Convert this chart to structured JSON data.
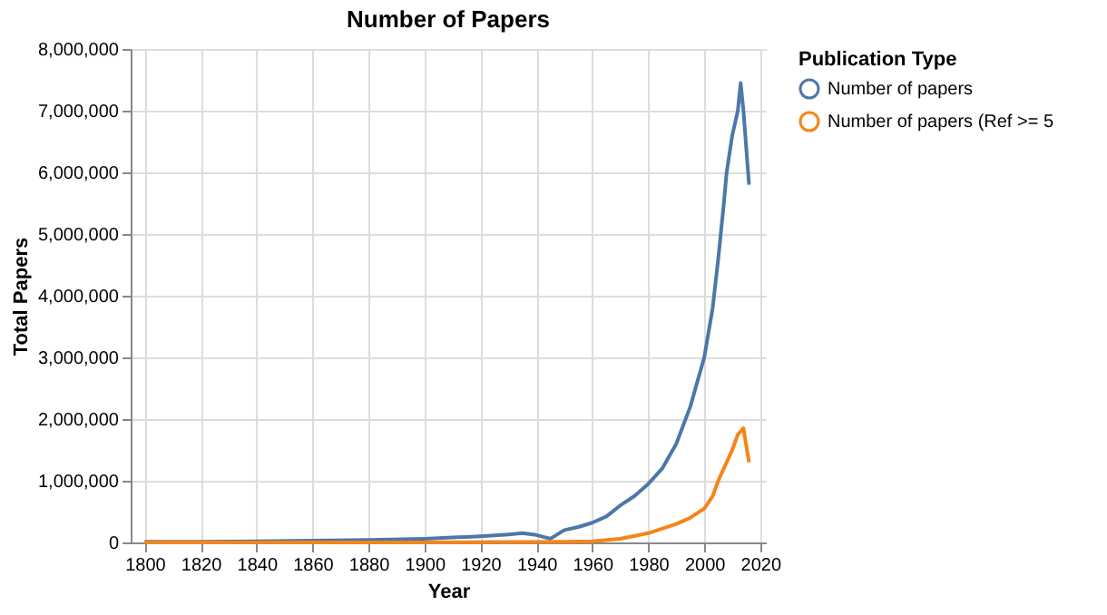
{
  "chart_data": {
    "type": "line",
    "title": "Number of Papers",
    "xlabel": "Year",
    "ylabel": "Total Papers",
    "legend_title": "Publication Type",
    "xlim": [
      1795,
      2022
    ],
    "xticks": [
      1800,
      1820,
      1840,
      1860,
      1880,
      1900,
      1920,
      1940,
      1960,
      1980,
      2000,
      2020
    ],
    "ylim": [
      0,
      8000000
    ],
    "yticks": [
      {
        "value": 0,
        "label": "0"
      },
      {
        "value": 1000000,
        "label": "1,000,000"
      },
      {
        "value": 2000000,
        "label": "2,000,000"
      },
      {
        "value": 3000000,
        "label": "3,000,000"
      },
      {
        "value": 4000000,
        "label": "4,000,000"
      },
      {
        "value": 5000000,
        "label": "5,000,000"
      },
      {
        "value": 6000000,
        "label": "6,000,000"
      },
      {
        "value": 7000000,
        "label": "7,000,000"
      },
      {
        "value": 8000000,
        "label": "8,000,000"
      }
    ],
    "grid": true,
    "legend": "top right",
    "marker": "none",
    "series": [
      {
        "name": "Number of papers",
        "color": "#4c78a8",
        "x": [
          1800,
          1820,
          1840,
          1860,
          1880,
          1900,
          1910,
          1920,
          1930,
          1935,
          1940,
          1945,
          1950,
          1955,
          1960,
          1965,
          1970,
          1975,
          1980,
          1985,
          1990,
          1995,
          2000,
          2003,
          2005,
          2007,
          2008,
          2010,
          2012,
          2013,
          2014,
          2016
        ],
        "values": [
          10000,
          10000,
          20000,
          30000,
          40000,
          60000,
          80000,
          100000,
          130000,
          150000,
          120000,
          60000,
          200000,
          250000,
          320000,
          420000,
          600000,
          750000,
          950000,
          1200000,
          1600000,
          2200000,
          3000000,
          3800000,
          4600000,
          5500000,
          6000000,
          6600000,
          7000000,
          7450000,
          7000000,
          5800000
        ]
      },
      {
        "name": "Number of papers (Ref >= 5",
        "color": "#f58518",
        "x": [
          1800,
          1900,
          1950,
          1960,
          1970,
          1980,
          1990,
          1995,
          2000,
          2003,
          2005,
          2007,
          2008,
          2010,
          2012,
          2013,
          2014,
          2016
        ],
        "values": [
          0,
          0,
          10000,
          20000,
          60000,
          150000,
          300000,
          400000,
          550000,
          750000,
          1000000,
          1200000,
          1300000,
          1500000,
          1750000,
          1800000,
          1850000,
          1300000
        ]
      }
    ]
  }
}
